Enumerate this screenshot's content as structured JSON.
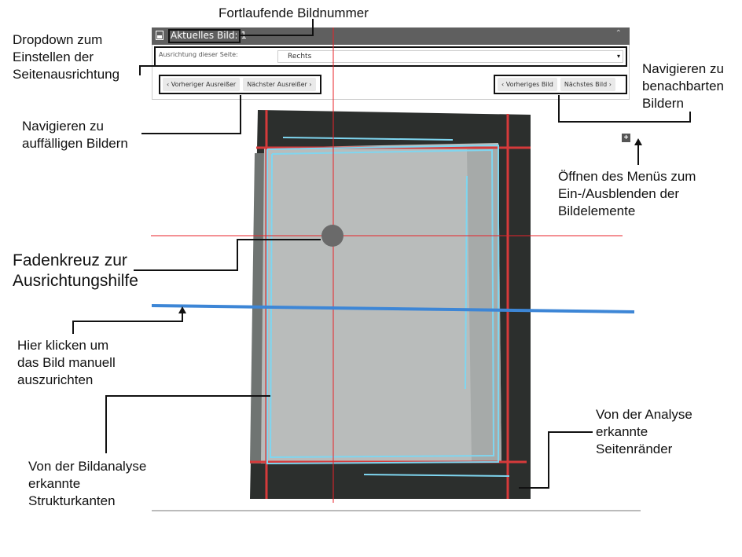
{
  "panel": {
    "title": "Aktuelles Bild: 1",
    "collapse_icon": "chevron-up-icon",
    "orientation_label": "Ausrichtung dieser Seite:",
    "orientation_value": "Rechts",
    "buttons": {
      "prev_outlier": "‹ Vorheriger Ausreißer",
      "next_outlier": "Nächster Ausreißer ›",
      "prev_image": "‹ Vorheriges Bild",
      "next_image": "Nächstes Bild ›"
    }
  },
  "toggle_button": "+",
  "annotations": {
    "image_number": "Fortlaufende Bildnummer",
    "orientation_dropdown": "Dropdown zum\nEinstellen der\nSeitenausrichtung",
    "neighbor_nav": "Navigieren zu\nbenachbarten\nBildern",
    "outlier_nav": "Navigieren zu\nauffälligen Bildern",
    "element_menu": "Öffnen des Menüs zum\nEin-/Ausblenden der\nBildelemente",
    "crosshair": "Fadenkreuz zur\nAusrichtungshilfe",
    "manual_align": "Hier klicken um\ndas Bild manuell\nauszurichten",
    "page_edges": "Von der Analyse\nerkannte\nSeitenränder",
    "structure_edges": "Von der Bildanalyse\nerkannte\nStrukturkanten"
  },
  "colors": {
    "crosshair": "#e8232a",
    "page_edge": "#d63a3a",
    "structure_edge": "#7fd6f0",
    "manual_line": "#3d86d6",
    "header_bg": "#5f5f5f"
  }
}
